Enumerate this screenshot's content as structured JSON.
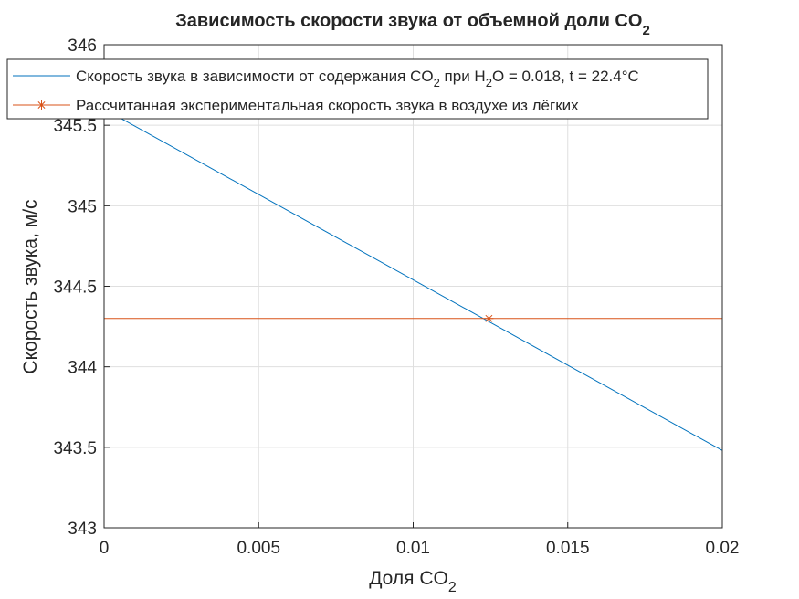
{
  "chart_data": {
    "type": "line",
    "title": {
      "main": "Зависимость скорости звука от объемной доли CO",
      "sub": "2"
    },
    "xlabel": {
      "main": "Доля CO",
      "sub": "2"
    },
    "ylabel": "Скорость звука, м/с",
    "xlim": [
      0,
      0.02
    ],
    "ylim": [
      343,
      346
    ],
    "x_ticks": [
      "0",
      "0.005",
      "0.01",
      "0.015",
      "0.02"
    ],
    "y_ticks": [
      "343",
      "343.5",
      "344",
      "344.5",
      "345",
      "345.5",
      "346"
    ],
    "grid": true,
    "legend_position": "top",
    "series": [
      {
        "name": {
          "a": "Скорость звука в зависимости от содержания CO",
          "b": "2",
          "c": " при H",
          "d": "2",
          "e": "O = 0.018, t = 22.4°C"
        },
        "color": "#0072BD",
        "marker": "none",
        "x": [
          0,
          0.02
        ],
        "y": [
          345.6,
          343.48
        ]
      },
      {
        "name": {
          "a": "Рассчитанная экспериментальная скорость звука в воздухе из лёгких"
        },
        "color": "#D95319",
        "marker": "asterisk",
        "x": [
          0,
          0.02
        ],
        "y": [
          344.3,
          344.3
        ],
        "marker_point": {
          "x": 0.01245,
          "y": 344.3
        }
      }
    ]
  }
}
